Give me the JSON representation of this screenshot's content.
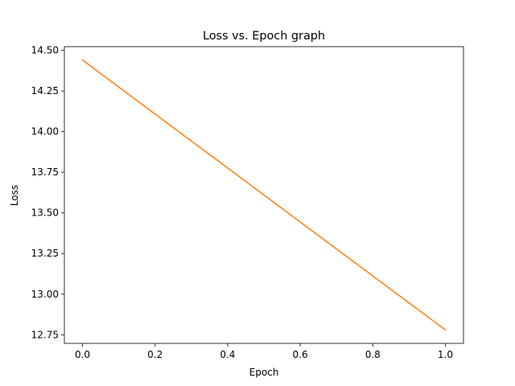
{
  "chart_data": {
    "type": "line",
    "title": "Loss vs. Epoch graph",
    "xlabel": "Epoch",
    "ylabel": "Loss",
    "x": [
      0.0,
      1.0
    ],
    "series": [
      {
        "values": [
          14.44,
          12.78
        ],
        "color": "#ff7f0e"
      }
    ],
    "xlim": [
      -0.05,
      1.05
    ],
    "ylim": [
      12.697,
      14.523
    ],
    "xticks": [
      0.0,
      0.2,
      0.4,
      0.6,
      0.8,
      1.0
    ],
    "xtick_labels": [
      "0.0",
      "0.2",
      "0.4",
      "0.6",
      "0.8",
      "1.0"
    ],
    "yticks": [
      12.75,
      13.0,
      13.25,
      13.5,
      13.75,
      14.0,
      14.25,
      14.5
    ],
    "ytick_labels": [
      "12.75",
      "13.00",
      "13.25",
      "13.50",
      "13.75",
      "14.00",
      "14.25",
      "14.50"
    ],
    "grid": false,
    "legend": "none"
  }
}
